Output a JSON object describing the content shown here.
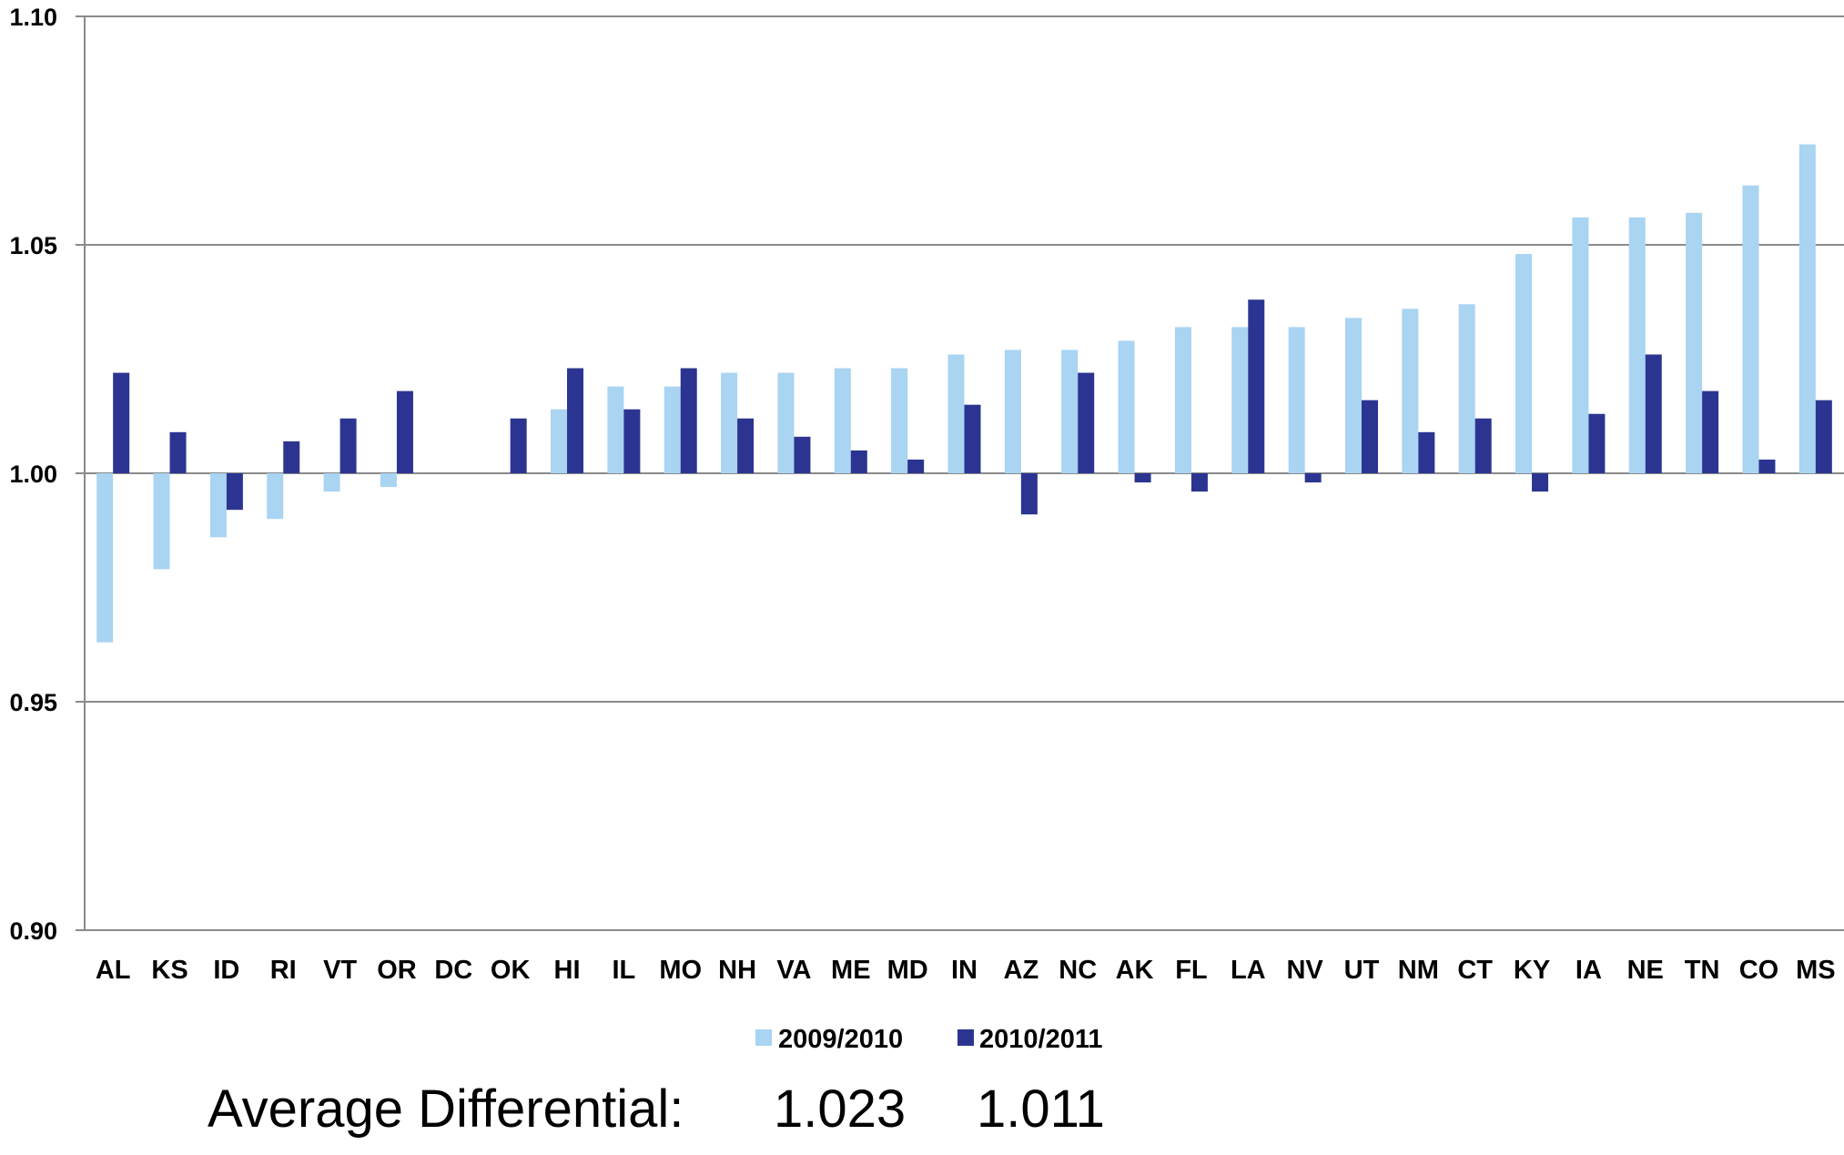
{
  "chart_data": {
    "type": "bar",
    "ylim": [
      0.9,
      1.1
    ],
    "yticks": [
      "1.10",
      "1.05",
      "1.00",
      "0.95",
      "0.90"
    ],
    "baseline": 1.0,
    "grid": true,
    "legend_position": "bottom",
    "categories": [
      "AL",
      "KS",
      "ID",
      "RI",
      "VT",
      "OR",
      "DC",
      "OK",
      "HI",
      "IL",
      "MO",
      "NH",
      "VA",
      "ME",
      "MD",
      "IN",
      "AZ",
      "NC",
      "AK",
      "FL",
      "LA",
      "NV",
      "UT",
      "NM",
      "CT",
      "KY",
      "IA",
      "NE",
      "TN",
      "CO",
      "MS"
    ],
    "series": [
      {
        "name": "2009/2010",
        "color": "#a9d4f2",
        "values": [
          0.963,
          0.979,
          0.986,
          0.99,
          0.996,
          0.997,
          1.0,
          1.0,
          1.014,
          1.019,
          1.019,
          1.022,
          1.022,
          1.023,
          1.023,
          1.026,
          1.027,
          1.027,
          1.029,
          1.032,
          1.032,
          1.032,
          1.034,
          1.036,
          1.037,
          1.048,
          1.056,
          1.056,
          1.057,
          1.063,
          1.072
        ]
      },
      {
        "name": "2010/2011",
        "color": "#2b3591",
        "values": [
          1.022,
          1.009,
          0.992,
          1.007,
          1.012,
          1.018,
          1.0,
          1.012,
          1.023,
          1.014,
          1.023,
          1.012,
          1.008,
          1.005,
          1.003,
          1.015,
          0.991,
          1.022,
          0.998,
          0.996,
          1.038,
          0.998,
          1.016,
          1.009,
          1.012,
          0.996,
          1.013,
          1.026,
          1.018,
          1.003,
          1.016
        ]
      }
    ]
  },
  "summary": {
    "label": "Average Differential:",
    "value_1": "1.023",
    "value_2": "1.011"
  }
}
